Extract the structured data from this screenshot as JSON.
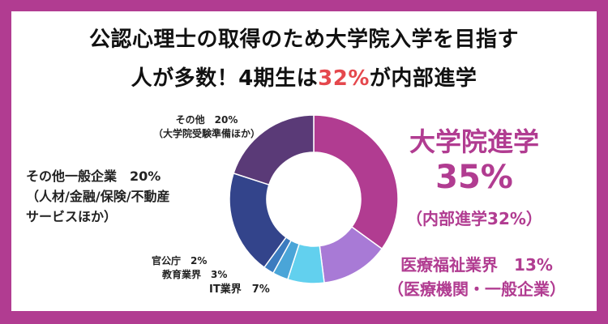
{
  "title": {
    "line1": "公認心理士の取得のため大学院入学を目指す",
    "line2_pre": "人が多数！4期生は",
    "line2_highlight": "32%",
    "line2_post": "が内部進学"
  },
  "colors": {
    "frame": "#b13c91",
    "highlight": "#e5484d",
    "grad_school": "#b13c91",
    "medical": "#a87ad6",
    "it": "#62d0ee",
    "education": "#4aa5d8",
    "government": "#3c7bbf",
    "general": "#33448b",
    "other": "#5a3a77"
  },
  "labels": {
    "grad_school": {
      "name": "大学院進学",
      "pct": "35%",
      "sub": "（内部進学32%）"
    },
    "medical": {
      "name": "医療福祉業界　13%",
      "sub": "（医療機関・一般企業）"
    },
    "it": {
      "text": "IT業界　7%"
    },
    "education": {
      "text": "教育業界　3%"
    },
    "government": {
      "text": "官公庁　2%"
    },
    "general": {
      "name": "その他一般企業　20%",
      "sub1": "（人材/金融/保険/不動産",
      "sub2": "サービスほか）"
    },
    "other": {
      "name": "その他　20%",
      "sub": "（大学院受験準備ほか）"
    }
  },
  "chart_data": {
    "type": "pie",
    "donut": true,
    "categories": [
      "大学院進学",
      "医療福祉業界",
      "IT業界",
      "教育業界",
      "官公庁",
      "その他一般企業",
      "その他"
    ],
    "values": [
      35,
      13,
      7,
      3,
      2,
      20,
      20
    ],
    "colors": [
      "#b13c91",
      "#a87ad6",
      "#62d0ee",
      "#4aa5d8",
      "#3c7bbf",
      "#33448b",
      "#5a3a77"
    ]
  }
}
